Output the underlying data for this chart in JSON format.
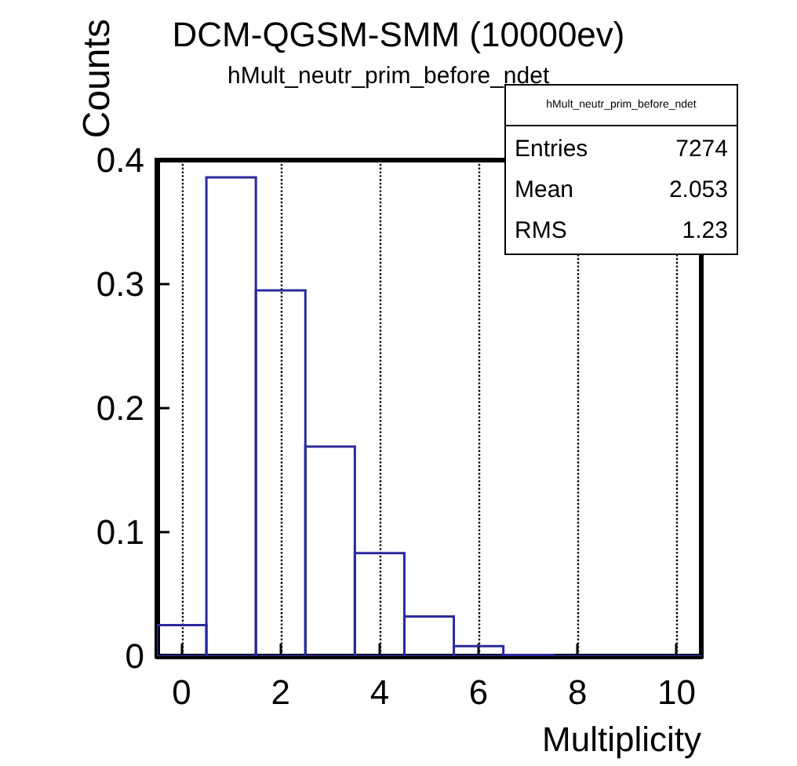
{
  "chart_data": {
    "type": "histogram",
    "title": "DCM-QGSM-SMM (10000ev)",
    "subtitle": "hMult_neutr_prim_before_ndet",
    "xlabel": "Multiplicity",
    "ylabel": "Counts",
    "bins": [
      -0.5,
      0.5,
      1.5,
      2.5,
      3.5,
      4.5,
      5.5,
      6.5,
      7.5,
      8.5,
      9.5,
      10.5
    ],
    "values": [
      0.025,
      0.386,
      0.295,
      0.169,
      0.083,
      0.032,
      0.008,
      0.001,
      0,
      0,
      0
    ],
    "color": "#2a2a9c",
    "xlim": [
      -0.5,
      10.5
    ],
    "xticks": [
      0,
      2,
      4,
      6,
      8,
      10
    ],
    "ylim": [
      0,
      0.4
    ],
    "yticks": [
      0,
      0.1,
      0.2,
      0.3,
      0.4
    ],
    "grid": "x",
    "annotations": [
      "hMult_neutr_prim_before_ndet",
      "Entries",
      "7274",
      "Mean",
      "2.053",
      "RMS",
      "1.23"
    ]
  }
}
